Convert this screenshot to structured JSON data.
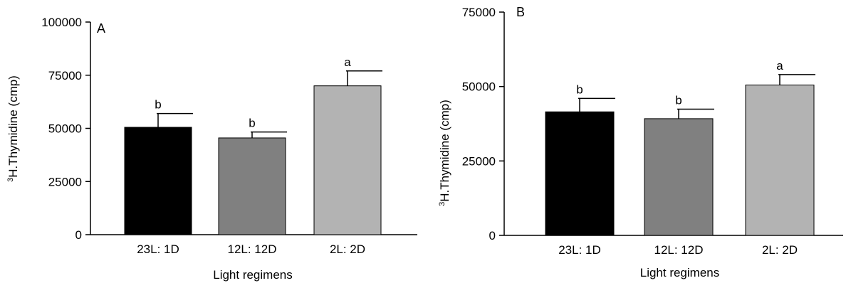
{
  "chart_data": [
    {
      "type": "bar",
      "panel_label": "A",
      "xlabel": "Light regimens",
      "ylabel_superscript": "3",
      "ylabel": "H.Thymidine (cmp)",
      "categories": [
        "23L: 1D",
        "12L: 12D",
        "2L: 2D"
      ],
      "values": [
        50500,
        45500,
        70000
      ],
      "errors": [
        6500,
        2800,
        7000
      ],
      "significance": [
        "b",
        "b",
        "a"
      ],
      "colors": [
        "#000000",
        "#808080",
        "#b3b3b3"
      ],
      "ylim": [
        0,
        100000
      ],
      "yticks": [
        0,
        25000,
        50000,
        75000,
        100000
      ],
      "ytick_labels": [
        "0",
        "25000",
        "50000",
        "75000",
        "100000"
      ],
      "grid": false
    },
    {
      "type": "bar",
      "panel_label": "B",
      "xlabel": "Light regimens",
      "ylabel_superscript": "3",
      "ylabel": "H.Thymidine (cmp)",
      "categories": [
        "23L: 1D",
        "12L: 12D",
        "2L: 2D"
      ],
      "values": [
        41500,
        39200,
        50500
      ],
      "errors": [
        4500,
        3200,
        3500
      ],
      "significance": [
        "b",
        "b",
        "a"
      ],
      "colors": [
        "#000000",
        "#808080",
        "#b3b3b3"
      ],
      "ylim": [
        0,
        75000
      ],
      "yticks": [
        0,
        25000,
        50000,
        75000
      ],
      "ytick_labels": [
        "0",
        "25000",
        "50000",
        "75000"
      ],
      "grid": false
    }
  ]
}
